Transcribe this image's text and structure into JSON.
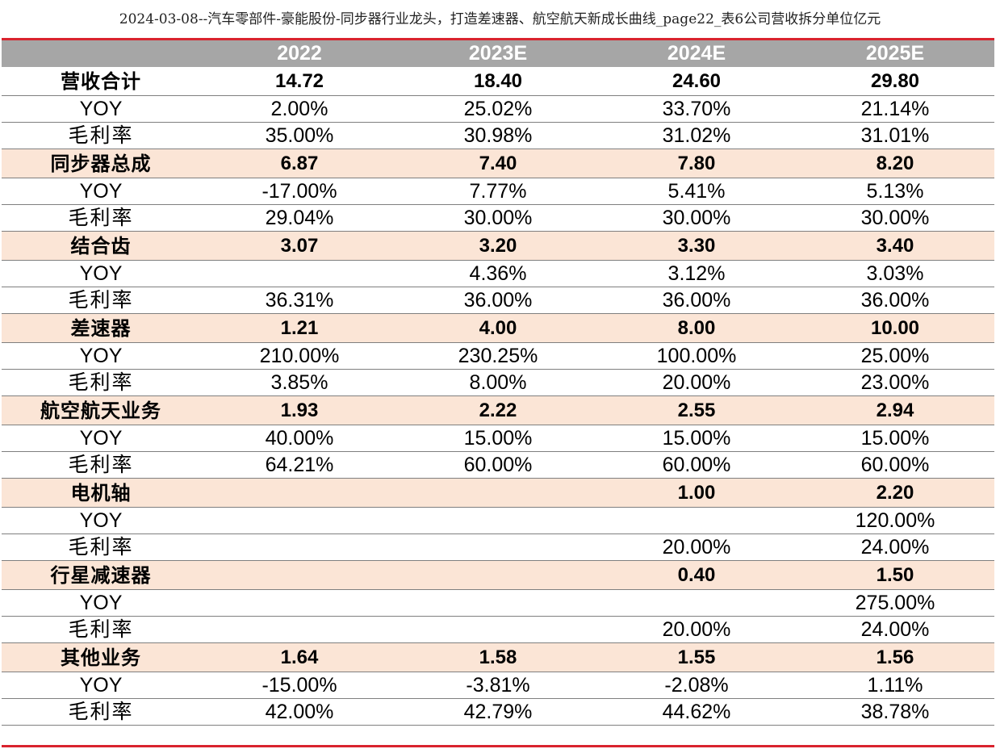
{
  "caption": "2024-03-08--汽车零部件-豪能股份-同步器行业龙头，打造差速器、航空航天新成长曲线_page22_表6公司营收拆分单位亿元",
  "table": {
    "headers": [
      "",
      "2022",
      "2023E",
      "2024E",
      "2025E"
    ],
    "groups": [
      {
        "name": "营收合计",
        "shaded": false,
        "values": [
          "14.72",
          "18.40",
          "24.60",
          "29.80"
        ],
        "yoy_label": "YOY",
        "yoy": [
          "2.00%",
          "25.02%",
          "33.70%",
          "21.14%"
        ],
        "gm_label": "毛利率",
        "gm": [
          "35.00%",
          "30.98%",
          "31.02%",
          "31.01%"
        ]
      },
      {
        "name": "同步器总成",
        "shaded": true,
        "values": [
          "6.87",
          "7.40",
          "7.80",
          "8.20"
        ],
        "yoy_label": "YOY",
        "yoy": [
          "-17.00%",
          "7.77%",
          "5.41%",
          "5.13%"
        ],
        "gm_label": "毛利率",
        "gm": [
          "29.04%",
          "30.00%",
          "30.00%",
          "30.00%"
        ]
      },
      {
        "name": "结合齿",
        "shaded": true,
        "values": [
          "3.07",
          "3.20",
          "3.30",
          "3.40"
        ],
        "yoy_label": "YOY",
        "yoy": [
          "",
          "4.36%",
          "3.12%",
          "3.03%"
        ],
        "gm_label": "毛利率",
        "gm": [
          "36.31%",
          "36.00%",
          "36.00%",
          "36.00%"
        ]
      },
      {
        "name": "差速器",
        "shaded": true,
        "values": [
          "1.21",
          "4.00",
          "8.00",
          "10.00"
        ],
        "yoy_label": "YOY",
        "yoy": [
          "210.00%",
          "230.25%",
          "100.00%",
          "25.00%"
        ],
        "gm_label": "毛利率",
        "gm": [
          "3.85%",
          "8.00%",
          "20.00%",
          "23.00%"
        ]
      },
      {
        "name": "航空航天业务",
        "shaded": true,
        "values": [
          "1.93",
          "2.22",
          "2.55",
          "2.94"
        ],
        "yoy_label": "YOY",
        "yoy": [
          "40.00%",
          "15.00%",
          "15.00%",
          "15.00%"
        ],
        "gm_label": "毛利率",
        "gm": [
          "64.21%",
          "60.00%",
          "60.00%",
          "60.00%"
        ]
      },
      {
        "name": "电机轴",
        "shaded": true,
        "values": [
          "",
          "",
          "1.00",
          "2.20"
        ],
        "yoy_label": "YOY",
        "yoy": [
          "",
          "",
          "",
          "120.00%"
        ],
        "gm_label": "毛利率",
        "gm": [
          "",
          "",
          "20.00%",
          "24.00%"
        ]
      },
      {
        "name": "行星减速器",
        "shaded": true,
        "values": [
          "",
          "",
          "0.40",
          "1.50"
        ],
        "yoy_label": "YOY",
        "yoy": [
          "",
          "",
          "",
          "275.00%"
        ],
        "gm_label": "毛利率",
        "gm": [
          "",
          "",
          "20.00%",
          "24.00%"
        ]
      },
      {
        "name": "其他业务",
        "shaded": true,
        "values": [
          "1.64",
          "1.58",
          "1.55",
          "1.56"
        ],
        "yoy_label": "YOY",
        "yoy": [
          "-15.00%",
          "-3.81%",
          "-2.08%",
          "1.11%"
        ],
        "gm_label": "毛利率",
        "gm": [
          "42.00%",
          "42.79%",
          "44.62%",
          "38.78%"
        ]
      }
    ]
  }
}
